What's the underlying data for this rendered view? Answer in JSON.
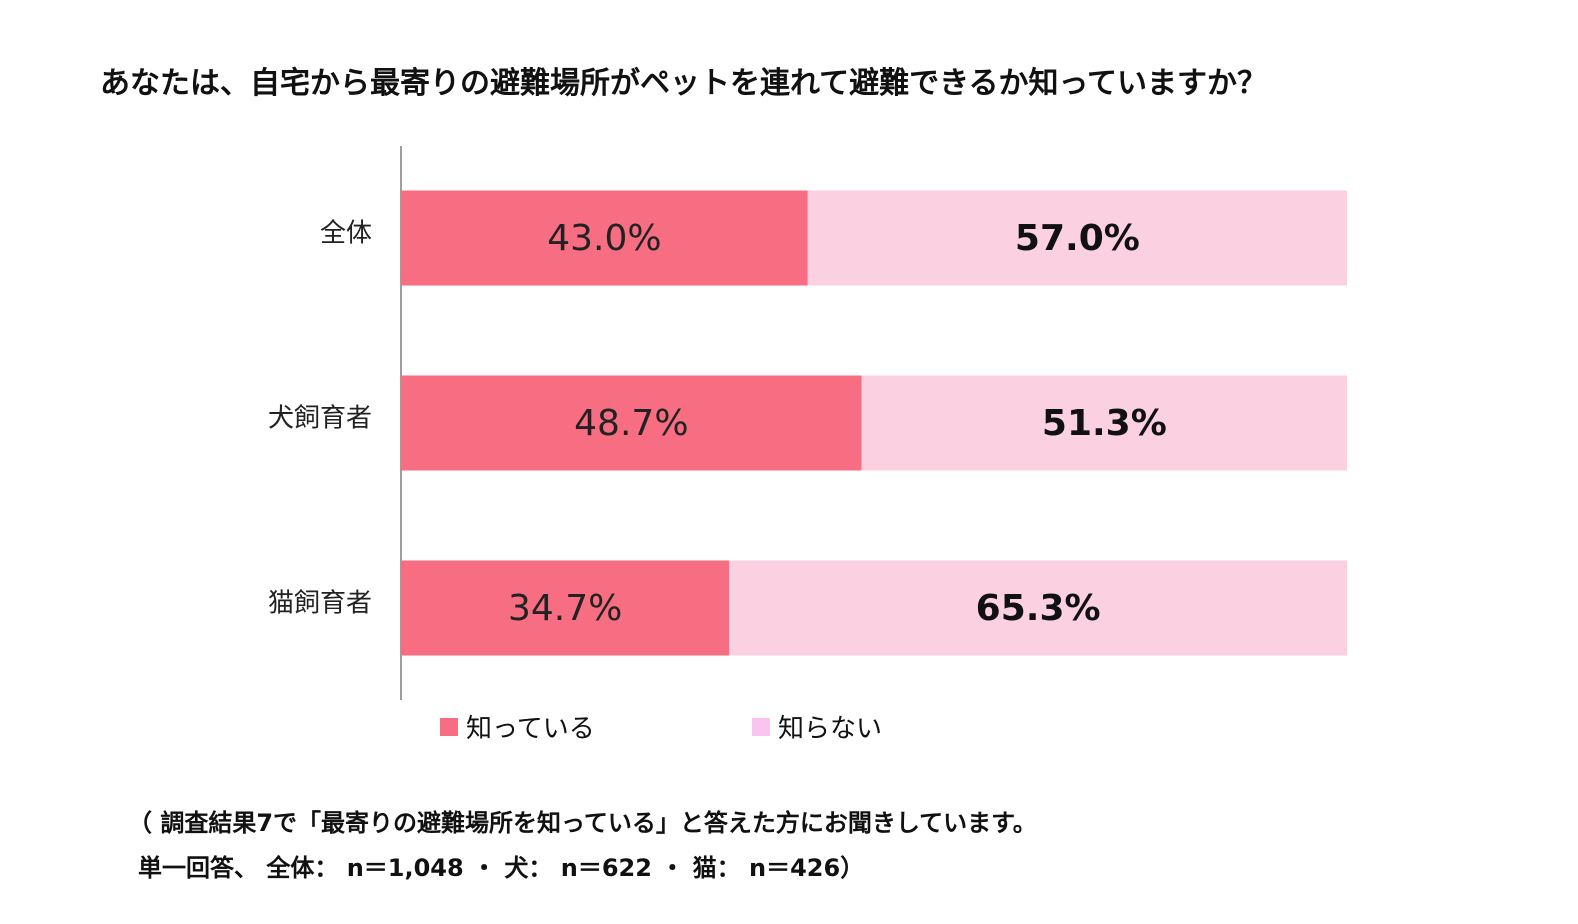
{
  "title": "あなたは、自宅から最寄りの避難場所がペットを連れて避難できるか知っていますか？",
  "legend": {
    "known": "知っている",
    "unknown": "知らない"
  },
  "notes": {
    "line1": "（ 調査結果7で「最寄りの避難場所を知っている」と答えた方にお聞きしています。",
    "line2": "単一回答、 全体： n＝1,048 ・ 犬： n＝622 ・ 猫： n＝426）"
  },
  "colors": {
    "known": "#F76D82",
    "unknown": "#FBD0E1",
    "legend_unknown": "#F9C4F0",
    "axis": "#7F7F7F"
  },
  "chart_data": {
    "type": "bar",
    "orientation": "horizontal",
    "stacked": true,
    "percent": true,
    "categories": [
      "全体",
      "犬飼育者",
      "猫飼育者"
    ],
    "series": [
      {
        "name": "知っている",
        "values": [
          43.0,
          48.7,
          34.7
        ],
        "labels": [
          "43.0%",
          "48.7%",
          "34.7%"
        ]
      },
      {
        "name": "知らない",
        "values": [
          57.0,
          51.3,
          65.3
        ],
        "labels": [
          "57.0%",
          "51.3%",
          "65.3%"
        ]
      }
    ],
    "xlim": [
      0,
      100
    ],
    "grid": false,
    "legend_position": "bottom"
  }
}
